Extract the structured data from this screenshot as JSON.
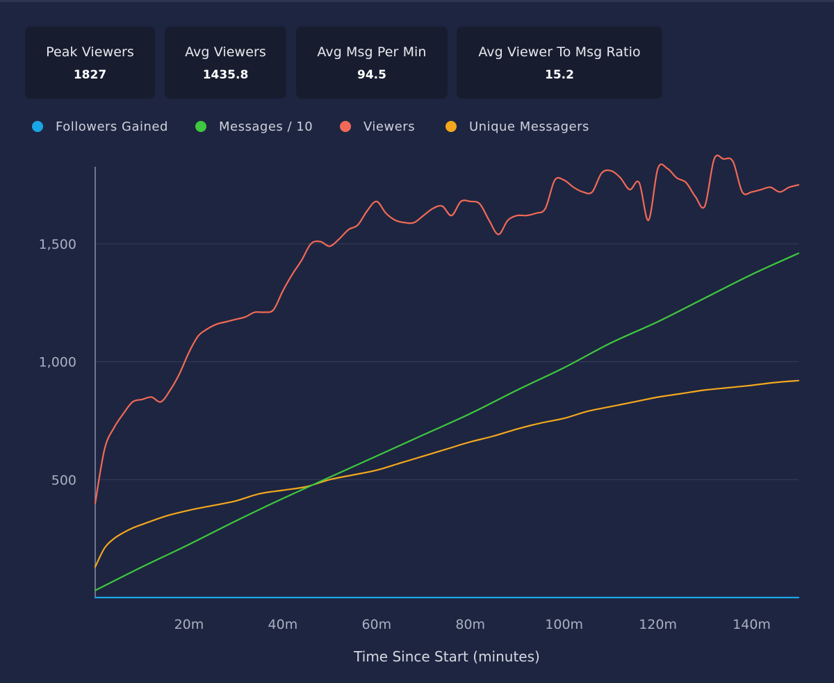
{
  "stats": [
    {
      "label": "Peak Viewers",
      "value": "1827"
    },
    {
      "label": "Avg Viewers",
      "value": "1435.8"
    },
    {
      "label": "Avg Msg Per Min",
      "value": "94.5"
    },
    {
      "label": "Avg Viewer To Msg Ratio",
      "value": "15.2"
    }
  ],
  "legend": [
    {
      "label": "Followers Gained",
      "color": "#1aa6e6"
    },
    {
      "label": "Messages / 10",
      "color": "#3ec93e"
    },
    {
      "label": "Viewers",
      "color": "#f26a57"
    },
    {
      "label": "Unique Messagers",
      "color": "#f3a81d"
    }
  ],
  "chart_data": {
    "type": "line",
    "title": "",
    "xlabel": "Time Since Start (minutes)",
    "ylabel": "",
    "xlim": [
      0,
      150
    ],
    "ylim": [
      0,
      1827
    ],
    "x_ticks": [
      20,
      40,
      60,
      80,
      100,
      120,
      140
    ],
    "x_tick_labels": [
      "20m",
      "40m",
      "60m",
      "80m",
      "100m",
      "120m",
      "140m"
    ],
    "y_ticks": [
      500,
      1000,
      1500
    ],
    "y_tick_labels": [
      "500",
      "1,000",
      "1,500"
    ],
    "grid": true,
    "series": [
      {
        "name": "Followers Gained",
        "color": "#1aa6e6",
        "x": [
          0,
          150
        ],
        "y": [
          0,
          0
        ]
      },
      {
        "name": "Messages / 10",
        "color": "#3ec93e",
        "x": [
          0,
          10,
          20,
          30,
          40,
          50,
          60,
          70,
          80,
          90,
          100,
          110,
          120,
          130,
          140,
          150
        ],
        "y": [
          30,
          130,
          225,
          325,
          420,
          510,
          600,
          690,
          780,
          880,
          975,
          1080,
          1170,
          1270,
          1370,
          1460
        ]
      },
      {
        "name": "Viewers",
        "color": "#f26a57",
        "x": [
          0,
          2,
          4,
          6,
          8,
          10,
          12,
          14,
          16,
          18,
          20,
          22,
          24,
          26,
          28,
          30,
          32,
          34,
          36,
          38,
          40,
          42,
          44,
          46,
          48,
          50,
          52,
          54,
          56,
          58,
          60,
          62,
          64,
          66,
          68,
          70,
          72,
          74,
          76,
          78,
          80,
          82,
          84,
          86,
          88,
          90,
          92,
          94,
          96,
          98,
          100,
          102,
          104,
          106,
          108,
          110,
          112,
          114,
          116,
          118,
          120,
          122,
          124,
          126,
          128,
          130,
          132,
          134,
          136,
          138,
          140,
          142,
          144,
          146,
          148,
          150
        ],
        "y": [
          400,
          630,
          720,
          780,
          830,
          840,
          850,
          830,
          880,
          950,
          1040,
          1110,
          1140,
          1160,
          1170,
          1180,
          1190,
          1210,
          1210,
          1220,
          1300,
          1370,
          1430,
          1500,
          1510,
          1490,
          1520,
          1560,
          1580,
          1640,
          1680,
          1630,
          1600,
          1590,
          1590,
          1620,
          1650,
          1660,
          1620,
          1680,
          1680,
          1670,
          1600,
          1540,
          1600,
          1620,
          1620,
          1630,
          1650,
          1770,
          1770,
          1740,
          1720,
          1720,
          1800,
          1810,
          1780,
          1730,
          1760,
          1600,
          1820,
          1820,
          1780,
          1760,
          1700,
          1660,
          1860,
          1860,
          1850,
          1720,
          1720,
          1730,
          1740,
          1720,
          1740,
          1750
        ]
      },
      {
        "name": "Unique Messagers",
        "color": "#f3a81d",
        "x": [
          0,
          2,
          4,
          6,
          8,
          10,
          15,
          20,
          25,
          30,
          35,
          40,
          45,
          50,
          55,
          60,
          65,
          70,
          75,
          80,
          85,
          90,
          95,
          100,
          105,
          110,
          115,
          120,
          125,
          130,
          135,
          140,
          145,
          150
        ],
        "y": [
          130,
          210,
          250,
          275,
          295,
          310,
          345,
          370,
          390,
          410,
          440,
          455,
          470,
          500,
          520,
          540,
          570,
          600,
          630,
          660,
          685,
          715,
          740,
          760,
          790,
          810,
          830,
          850,
          865,
          880,
          890,
          900,
          912,
          920
        ]
      }
    ]
  }
}
